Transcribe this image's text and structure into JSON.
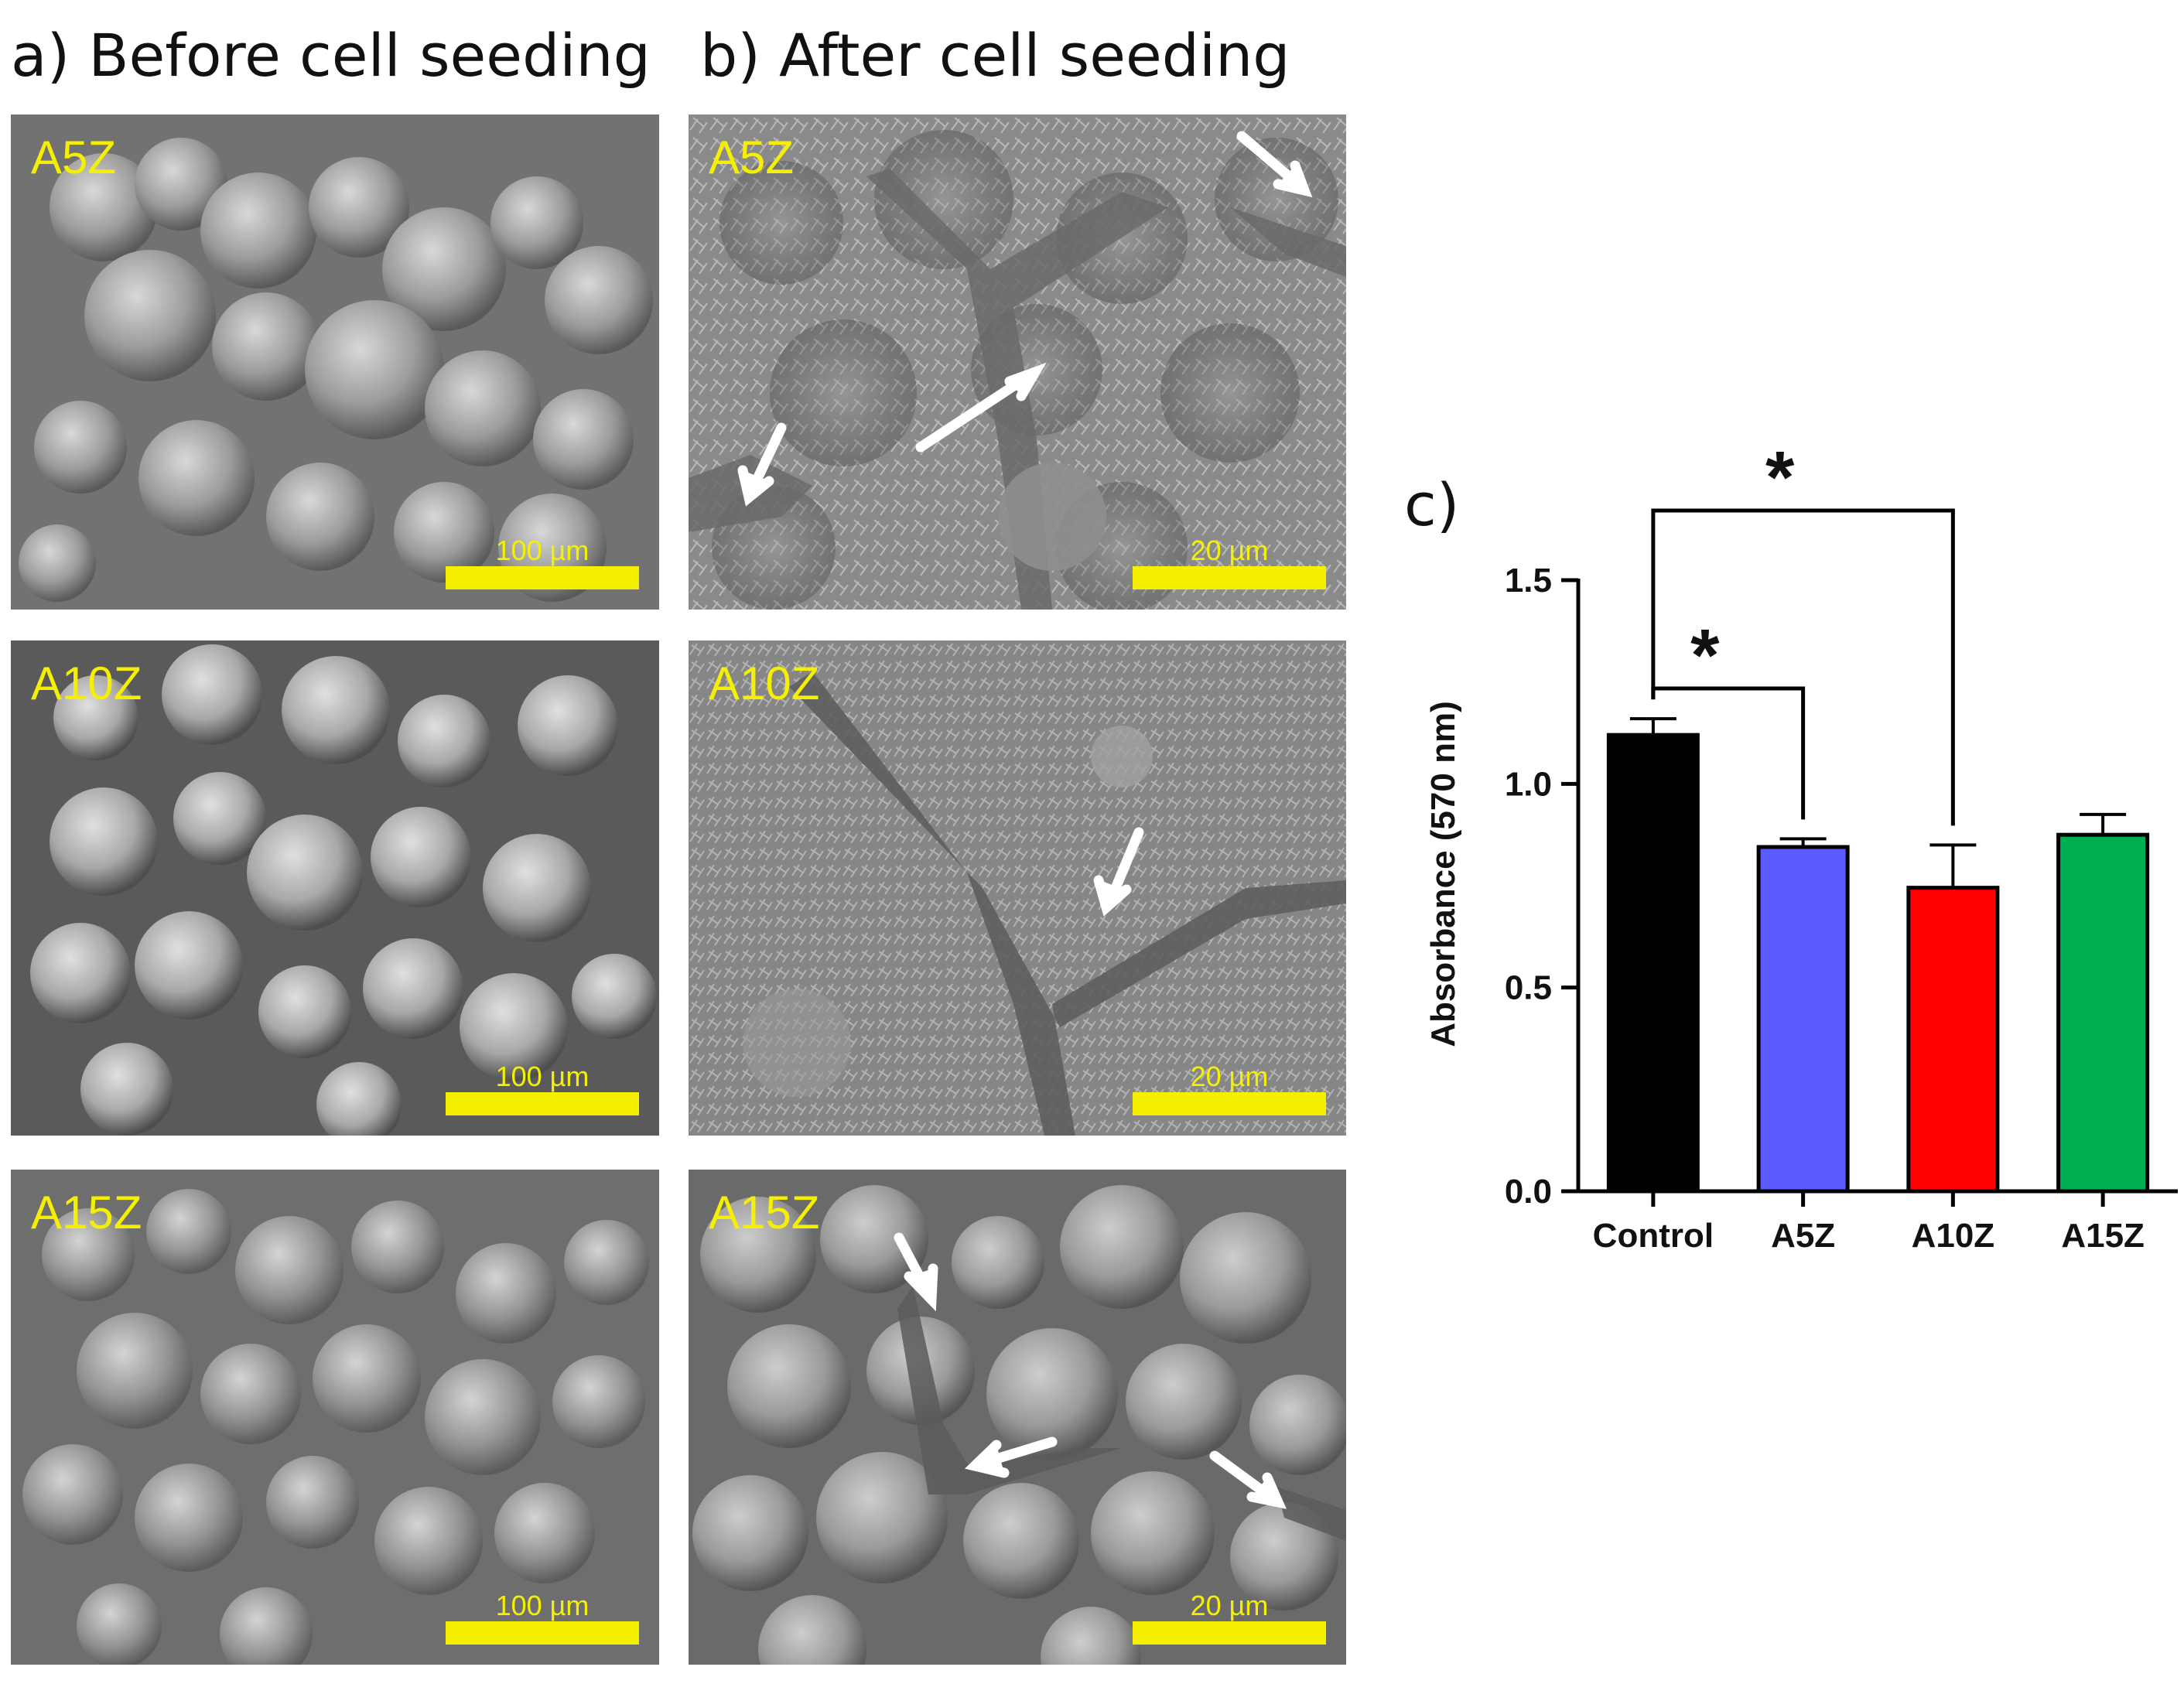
{
  "headers": {
    "a": "a) Before cell seeding",
    "b": "b) After cell seeding",
    "c": "c)"
  },
  "images": {
    "before": [
      {
        "sample": "A5Z",
        "scale": "100 µm"
      },
      {
        "sample": "A10Z",
        "scale": "100 µm"
      },
      {
        "sample": "A15Z",
        "scale": "100 µm"
      }
    ],
    "after": [
      {
        "sample": "A5Z",
        "scale": "20 µm"
      },
      {
        "sample": "A10Z",
        "scale": "20 µm"
      },
      {
        "sample": "A15Z",
        "scale": "20 µm"
      }
    ]
  },
  "colors": {
    "label": "#f5f000",
    "Control": "#000000",
    "A5Z": "#5a5aff",
    "A10Z": "#ff0000",
    "A15Z": "#00b050"
  },
  "chart_data": {
    "type": "bar",
    "title": "",
    "xlabel": "",
    "ylabel": "Absorbance (570 nm)",
    "ylim": [
      0,
      1.5
    ],
    "yticks": [
      "0.0",
      "0.5",
      "1.0",
      "1.5"
    ],
    "ytick_values": [
      0,
      0.5,
      1.0,
      1.5
    ],
    "categories": [
      "Control",
      "A5Z",
      "A10Z",
      "A15Z"
    ],
    "values": [
      1.12,
      0.845,
      0.745,
      0.875
    ],
    "errors": [
      0.04,
      0.02,
      0.105,
      0.05
    ],
    "significance": [
      {
        "from": "Control",
        "to": "A5Z",
        "label": "*"
      },
      {
        "from": "Control",
        "to": "A10Z",
        "label": "*"
      }
    ]
  }
}
